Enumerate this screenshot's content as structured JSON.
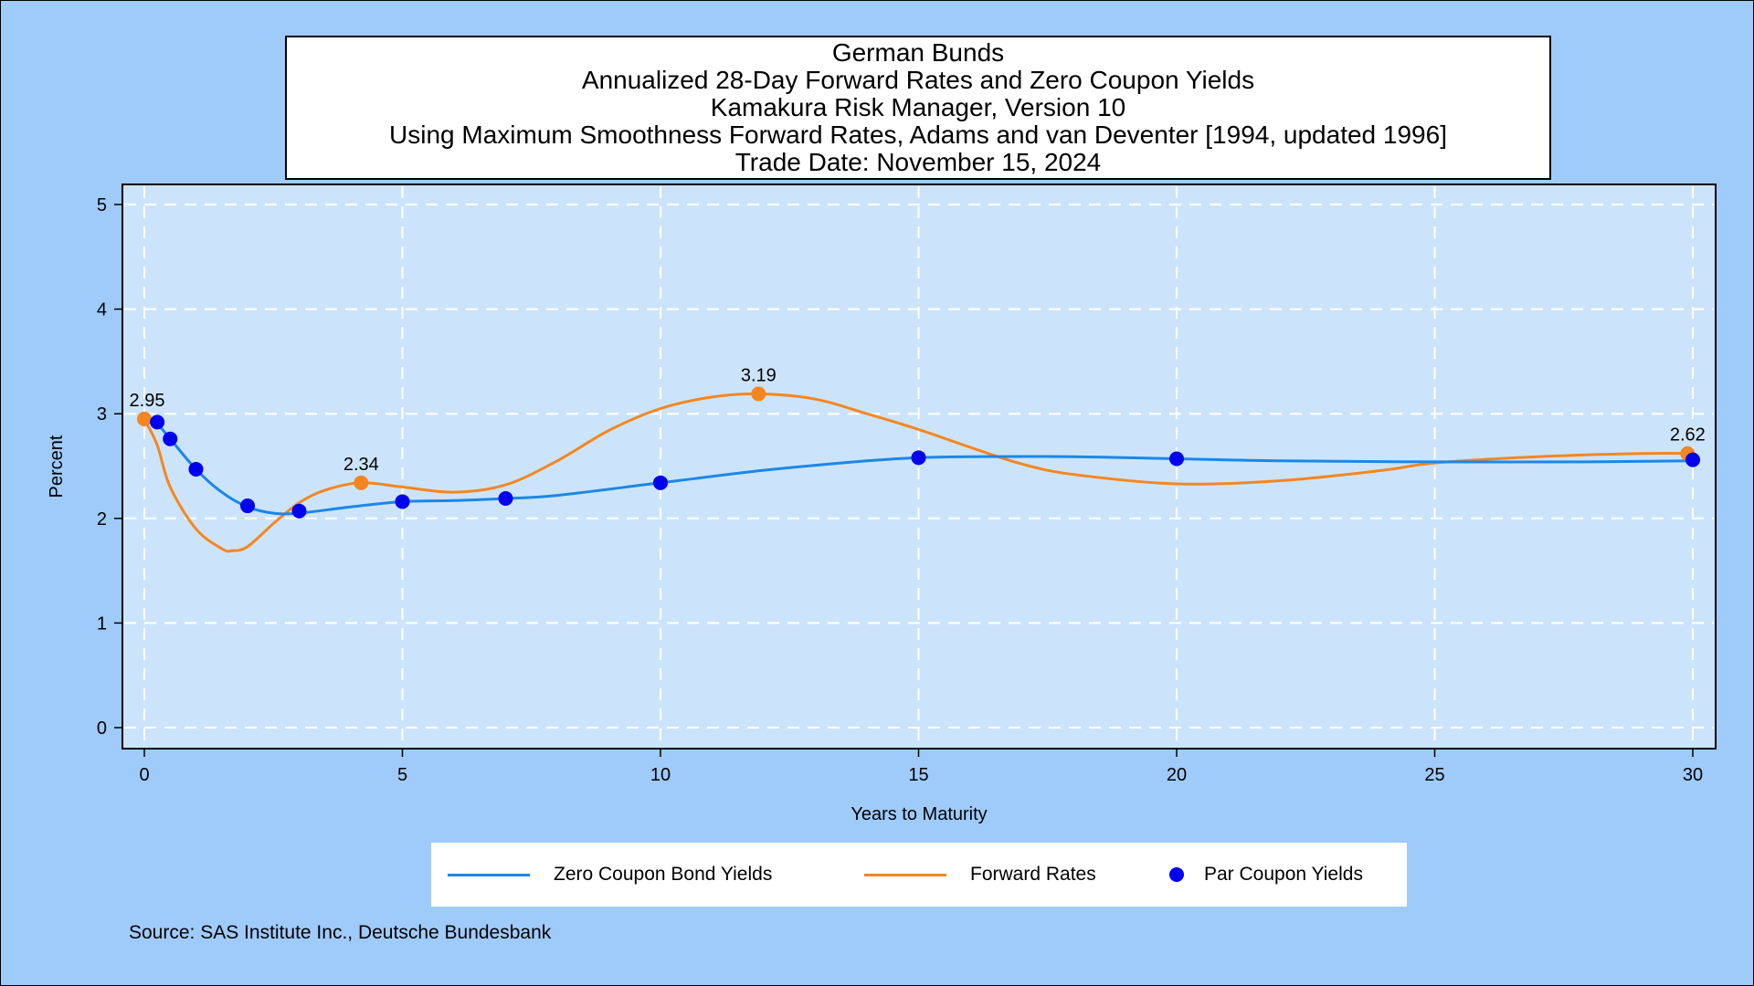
{
  "chart_data": {
    "type": "line",
    "title_lines": [
      "German Bunds",
      "Annualized 28-Day Forward Rates and Zero Coupon Yields",
      "Kamakura Risk Manager, Version 10",
      "Using Maximum Smoothness Forward Rates, Adams and van Deventer [1994, updated 1996]",
      "Trade Date: November 15, 2024"
    ],
    "xlabel": "Years to Maturity",
    "ylabel": "Percent",
    "xlim": [
      0,
      30
    ],
    "ylim": [
      0,
      5
    ],
    "xticks": [
      "0",
      "5",
      "10",
      "15",
      "20",
      "25",
      "30"
    ],
    "yticks": [
      "0",
      "1",
      "2",
      "3",
      "4",
      "5"
    ],
    "grid": true,
    "legend_position": "bottom",
    "series": [
      {
        "name": "Zero Coupon Bond Yields",
        "type": "line",
        "color": "#1b87e8",
        "x": [
          0,
          0.25,
          0.5,
          1,
          1.5,
          2,
          2.5,
          3,
          4,
          5,
          6,
          7,
          8,
          10,
          12,
          14,
          15,
          16,
          18,
          20,
          22,
          25,
          28,
          30
        ],
        "y": [
          2.95,
          2.9,
          2.76,
          2.47,
          2.25,
          2.11,
          2.05,
          2.05,
          2.11,
          2.16,
          2.17,
          2.19,
          2.22,
          2.34,
          2.46,
          2.55,
          2.58,
          2.59,
          2.59,
          2.57,
          2.55,
          2.54,
          2.54,
          2.55
        ]
      },
      {
        "name": "Forward Rates",
        "type": "line",
        "color": "#f5861f",
        "x": [
          0,
          0.25,
          0.5,
          1,
          1.5,
          1.7,
          2,
          2.5,
          3,
          3.5,
          4.2,
          5,
          6,
          7,
          8,
          9,
          10,
          11,
          11.9,
          13,
          14,
          15,
          16,
          17,
          18,
          20,
          22,
          24,
          25,
          27,
          29,
          30
        ],
        "y": [
          2.95,
          2.7,
          2.3,
          1.9,
          1.71,
          1.69,
          1.73,
          1.95,
          2.15,
          2.27,
          2.34,
          2.3,
          2.25,
          2.32,
          2.55,
          2.84,
          3.05,
          3.16,
          3.19,
          3.14,
          3.0,
          2.85,
          2.68,
          2.52,
          2.42,
          2.33,
          2.36,
          2.46,
          2.53,
          2.59,
          2.62,
          2.62
        ],
        "labels": [
          {
            "x": 0,
            "y": 2.95,
            "text": "2.95"
          },
          {
            "x": 4.2,
            "y": 2.34,
            "text": "2.34"
          },
          {
            "x": 11.9,
            "y": 3.19,
            "text": "3.19"
          },
          {
            "x": 29.9,
            "y": 2.62,
            "text": "2.62"
          }
        ]
      },
      {
        "name": "Par Coupon Yields",
        "type": "scatter",
        "color": "#0000ee",
        "x": [
          0.25,
          0.5,
          1,
          2,
          3,
          5,
          7,
          10,
          15,
          20,
          30
        ],
        "y": [
          2.92,
          2.76,
          2.47,
          2.12,
          2.07,
          2.16,
          2.19,
          2.34,
          2.58,
          2.57,
          2.56
        ]
      }
    ]
  },
  "legend": {
    "items": [
      {
        "label": "Zero Coupon Bond Yields",
        "color": "#1b87e8"
      },
      {
        "label": "Forward Rates",
        "color": "#f5861f"
      },
      {
        "label": "Par Coupon Yields",
        "color": "#0000ee"
      }
    ]
  },
  "source": "Source: SAS Institute Inc., Deutsche Bundesbank"
}
